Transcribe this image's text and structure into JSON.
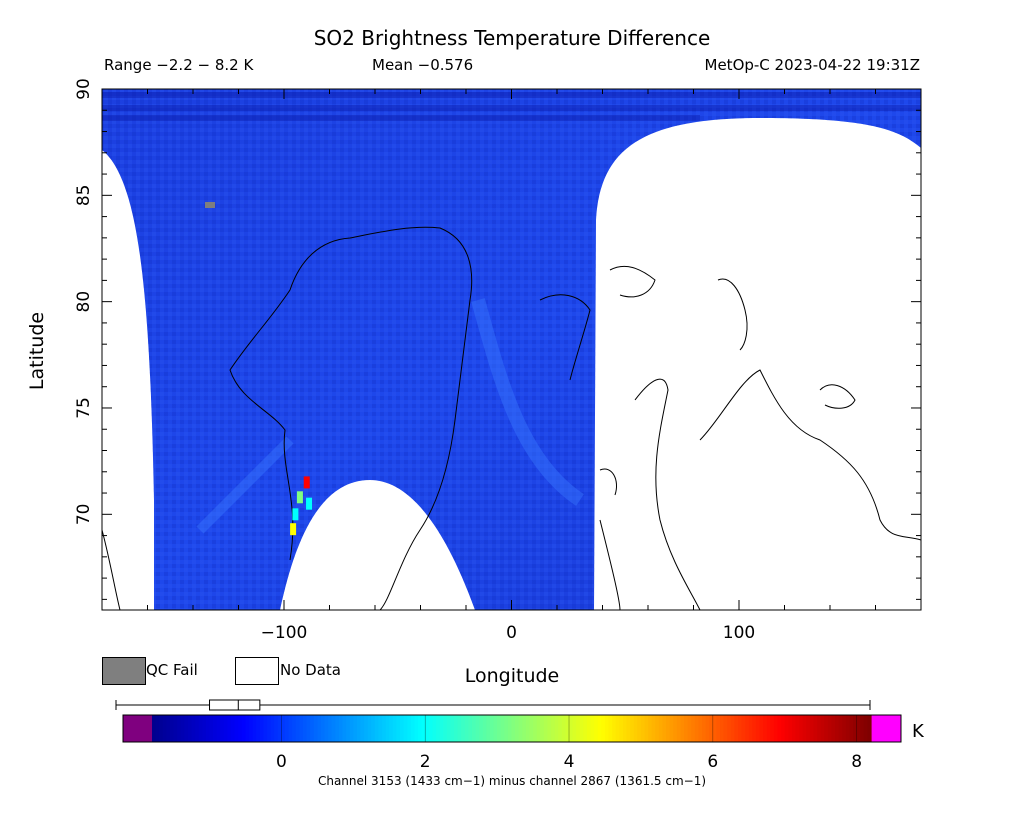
{
  "header": {
    "title": "SO2 Brightness Temperature Difference",
    "range_text": "Range −2.2 − 8.2 K",
    "mean_text": "Mean −0.576",
    "satellite_text": "MetOp-C 2023-04-22 19:31Z"
  },
  "legend": {
    "qc_fail_label": "QC Fail",
    "no_data_label": "No Data",
    "qc_fail_color": "#7f7f7f",
    "no_data_color": "#ffffff"
  },
  "colorbar": {
    "unit": "K",
    "tick_labels": [
      "0",
      "2",
      "4",
      "6",
      "8"
    ],
    "tick_values": [
      0,
      2,
      4,
      6,
      8
    ],
    "range": [
      -1.8,
      8.2
    ],
    "underflow_color": "#7f007f",
    "overflow_color": "#ff00ff",
    "colors": [
      "#00008f",
      "#0000ff",
      "#0080ff",
      "#00ffff",
      "#80ff80",
      "#ffff00",
      "#ff8000",
      "#ff0000",
      "#800000"
    ],
    "boxplot": {
      "whisker_min": -2.2,
      "q1": -1.0,
      "median": -0.6,
      "q3": -0.3,
      "whisker_max": 8.2
    }
  },
  "channel_note": "Channel 3153 (1433 cm−1) minus channel 2867 (1361.5 cm−1)",
  "chart_data": {
    "type": "heatmap",
    "title": "SO2 Brightness Temperature Difference",
    "xlabel": "Longitude",
    "ylabel": "Latitude",
    "xlim": [
      -180,
      180
    ],
    "ylim": [
      65.5,
      90
    ],
    "xticks": [
      -100,
      0,
      100
    ],
    "xtick_labels": [
      "−100",
      "0",
      "100"
    ],
    "yticks": [
      70,
      75,
      80,
      85,
      90
    ],
    "ytick_labels": [
      "70",
      "75",
      "80",
      "85",
      "90"
    ],
    "value_range": [
      -2.2,
      8.2
    ],
    "mean": -0.576,
    "unit": "K",
    "background_value": -0.6,
    "hotspots": [
      {
        "lon": -90,
        "lat": 71.5,
        "value": 6.5
      },
      {
        "lon": -93,
        "lat": 70.8,
        "value": 3.5
      },
      {
        "lon": -95,
        "lat": 70.0,
        "value": 2.0
      },
      {
        "lon": -96,
        "lat": 69.3,
        "value": 4.5
      },
      {
        "lon": -89,
        "lat": 70.5,
        "value": 2.5
      }
    ]
  }
}
